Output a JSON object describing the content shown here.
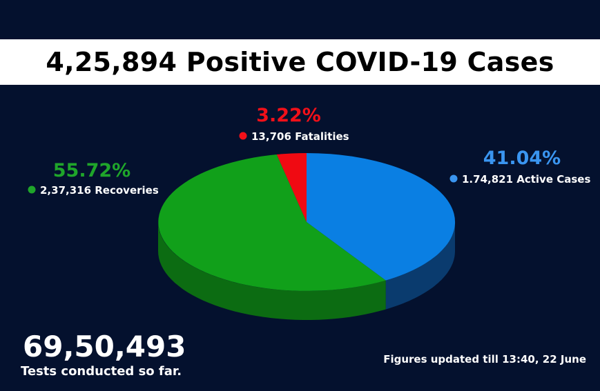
{
  "title": "4,25,894 Positive COVID-19 Cases",
  "chart_data": {
    "type": "pie",
    "title": "4,25,894 Positive COVID-19 Cases",
    "slices": [
      {
        "key": "active",
        "percent_label": "41.04%",
        "count_label": "1.74,821 Active Cases",
        "value": 41.04,
        "color": "#0a7fe3",
        "side_color": "#0a3b6e",
        "label_color": "#3a95f0"
      },
      {
        "key": "recoveries",
        "percent_label": "55.72%",
        "count_label": "2,37,316 Recoveries",
        "value": 55.72,
        "color": "#11a01a",
        "side_color": "#0c6c12",
        "label_color": "#1fa52a"
      },
      {
        "key": "fatalities",
        "percent_label": "3.22%",
        "count_label": "13,706 Fatalities",
        "value": 3.22,
        "color": "#f00a12",
        "side_color": "#8b0a10",
        "label_color": "#f21019"
      }
    ]
  },
  "tests": {
    "count": "69,50,493",
    "label": "Tests conducted so far."
  },
  "footer": {
    "updated": "Figures updated till 13:40, 22 June"
  }
}
